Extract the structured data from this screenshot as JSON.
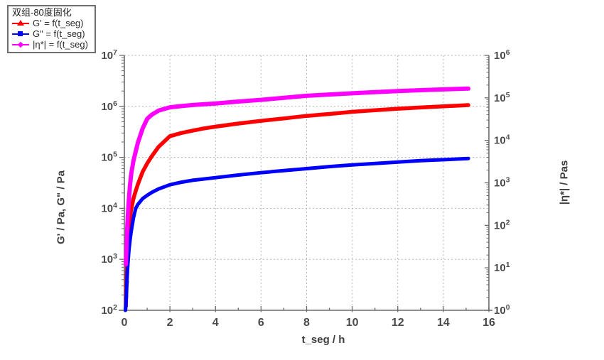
{
  "chart_data": {
    "type": "line",
    "title": "双组-80度固化",
    "legend": {
      "position": "top-left",
      "title": "双组-80度固化"
    },
    "x_axis": {
      "label": "t_seg / h",
      "min": 0,
      "max": 16,
      "major_tick_step": 2,
      "minor_tick_step": 1,
      "tick_labels": [
        "0",
        "2",
        "4",
        "6",
        "8",
        "10",
        "12",
        "14",
        "16"
      ],
      "scale": "linear"
    },
    "left_axis": {
      "label": "G' / Pa, G\" / Pa",
      "scale": "log",
      "min_exp": 2,
      "max_exp": 7,
      "tick_labels": [
        "10²",
        "10³",
        "10⁴",
        "10⁵",
        "10⁶",
        "10⁷"
      ]
    },
    "right_axis": {
      "label": "|η*| / Pas",
      "scale": "log",
      "min_exp": 0,
      "max_exp": 6,
      "tick_labels": [
        "10⁰",
        "10¹",
        "10²",
        "10³",
        "10⁴",
        "10⁵",
        "10⁶"
      ]
    },
    "grid": {
      "horizontal": "left_axis_decades",
      "vertical": "x_major_ticks",
      "line_style": "dotted",
      "color": "#b5b5b5"
    },
    "series": [
      {
        "id": "g_prime",
        "name": "G' = f(t_seg)",
        "axis": "left",
        "unit": "Pa",
        "color": "#ff0000",
        "marker": "triangle",
        "stroke_width": 5.5,
        "points": [
          [
            0.07,
            120
          ],
          [
            0.09,
            350
          ],
          [
            0.12,
            900
          ],
          [
            0.15,
            2000
          ],
          [
            0.2,
            4200
          ],
          [
            0.25,
            6500
          ],
          [
            0.3,
            9500
          ],
          [
            0.4,
            15500
          ],
          [
            0.5,
            22000
          ],
          [
            0.6,
            30000
          ],
          [
            0.8,
            52000
          ],
          [
            1,
            76000
          ],
          [
            1.2,
            105000
          ],
          [
            1.5,
            160000
          ],
          [
            2,
            260000
          ],
          [
            2.5,
            300000
          ],
          [
            3,
            335000
          ],
          [
            3.5,
            370000
          ],
          [
            4,
            400000
          ],
          [
            5,
            460000
          ],
          [
            6,
            520000
          ],
          [
            7,
            580000
          ],
          [
            8,
            650000
          ],
          [
            9,
            710000
          ],
          [
            10,
            780000
          ],
          [
            11,
            840000
          ],
          [
            12,
            900000
          ],
          [
            13,
            950000
          ],
          [
            14,
            1000000
          ],
          [
            15.1,
            1060000
          ]
        ]
      },
      {
        "id": "g_double_prime",
        "name": "G\" = f(t_seg)",
        "axis": "left",
        "unit": "Pa",
        "color": "#0000ff",
        "marker": "square",
        "stroke_width": 5,
        "points": [
          [
            0.05,
            100
          ],
          [
            0.07,
            130
          ],
          [
            0.09,
            200
          ],
          [
            0.12,
            420
          ],
          [
            0.15,
            750
          ],
          [
            0.2,
            1500
          ],
          [
            0.25,
            2400
          ],
          [
            0.3,
            3500
          ],
          [
            0.4,
            6500
          ],
          [
            0.5,
            10000
          ],
          [
            0.6,
            12000
          ],
          [
            0.8,
            15500
          ],
          [
            1,
            18000
          ],
          [
            1.2,
            20500
          ],
          [
            1.5,
            24000
          ],
          [
            2,
            29000
          ],
          [
            2.5,
            32500
          ],
          [
            3,
            35500
          ],
          [
            4,
            40000
          ],
          [
            5,
            45000
          ],
          [
            6,
            50000
          ],
          [
            7,
            55000
          ],
          [
            8,
            60000
          ],
          [
            9,
            66000
          ],
          [
            10,
            71000
          ],
          [
            11,
            76000
          ],
          [
            12,
            81000
          ],
          [
            13,
            86000
          ],
          [
            14,
            90000
          ],
          [
            15.1,
            95000
          ]
        ],
        "start_scatter": [
          [
            0.05,
            115
          ],
          [
            0.06,
            170
          ],
          [
            0.07,
            140
          ],
          [
            0.08,
            240
          ],
          [
            0.09,
            320
          ],
          [
            0.1,
            190
          ],
          [
            0.11,
            430
          ],
          [
            0.12,
            560
          ],
          [
            0.13,
            360
          ],
          [
            0.14,
            680
          ],
          [
            0.16,
            900
          ],
          [
            0.18,
            1250
          ],
          [
            0.2,
            1700
          ],
          [
            0.22,
            2100
          ]
        ]
      },
      {
        "id": "eta_star",
        "name": "|η*| = f(t_seg)",
        "axis": "right",
        "unit": "Pas",
        "color": "#ff00ff",
        "marker": "diamond",
        "stroke_width": 6,
        "points": [
          [
            0.07,
            12
          ],
          [
            0.09,
            25
          ],
          [
            0.12,
            70
          ],
          [
            0.15,
            160
          ],
          [
            0.2,
            420
          ],
          [
            0.25,
            900
          ],
          [
            0.3,
            1600
          ],
          [
            0.4,
            3300
          ],
          [
            0.5,
            5500
          ],
          [
            0.6,
            9000
          ],
          [
            0.8,
            19000
          ],
          [
            1,
            32000
          ],
          [
            1.2,
            40000
          ],
          [
            1.5,
            50000
          ],
          [
            2,
            60000
          ],
          [
            2.5,
            64000
          ],
          [
            3,
            68000
          ],
          [
            4,
            74000
          ],
          [
            5,
            82000
          ],
          [
            6,
            90000
          ],
          [
            7,
            100000
          ],
          [
            8,
            112000
          ],
          [
            9,
            120000
          ],
          [
            10,
            128000
          ],
          [
            11,
            137000
          ],
          [
            12,
            145000
          ],
          [
            13,
            152000
          ],
          [
            14,
            158000
          ],
          [
            15.1,
            165000
          ]
        ]
      }
    ]
  }
}
